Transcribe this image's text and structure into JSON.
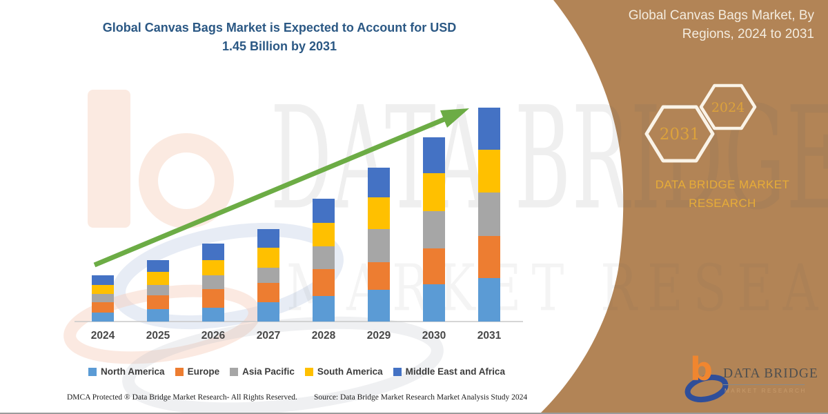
{
  "page": {
    "title_lines": [
      "Global Canvas Bags Market is Expected to Account for USD",
      "1.45 Billion by 2031"
    ],
    "footer_left": "DMCA Protected ® Data Bridge Market Research-  All Rights Reserved.",
    "footer_source": "Source: Data Bridge Market Research  Market Analysis Study 2024"
  },
  "sidebar": {
    "heading": "Global Canvas Bags Market, By Regions, 2024 to 2031",
    "hex_year_large": "2031",
    "hex_year_small": "2024",
    "brand_caption": "DATA BRIDGE MARKET RESEARCH",
    "bg_color": "#B28456",
    "hex_stroke_color": "#FAF3E7",
    "gold_color": "#E7AC38"
  },
  "logo": {
    "mark_letter": "b",
    "name": "DATA BRIDGE",
    "subtext": "MARKET RESEARCH"
  },
  "watermark": {
    "row1": "DATA BRIDGE",
    "row2": "MARKET RESEARCH"
  },
  "chart_data": {
    "type": "bar",
    "stacked": true,
    "title": "Global Canvas Bags Market is Expected to Account for USD 1.45 Billion by 2031",
    "unit": "USD Billion",
    "categories": [
      "2024",
      "2025",
      "2026",
      "2027",
      "2028",
      "2029",
      "2030",
      "2031"
    ],
    "series": [
      {
        "name": "North America",
        "color": "#5B9BD5",
        "values": [
          0.061,
          0.084,
          0.093,
          0.131,
          0.172,
          0.214,
          0.252,
          0.294
        ]
      },
      {
        "name": "Europe",
        "color": "#ED7D31",
        "values": [
          0.07,
          0.093,
          0.126,
          0.131,
          0.182,
          0.187,
          0.242,
          0.284
        ]
      },
      {
        "name": "Asia Pacific",
        "color": "#A6A6A6",
        "values": [
          0.056,
          0.07,
          0.093,
          0.103,
          0.154,
          0.224,
          0.256,
          0.298
        ]
      },
      {
        "name": "South America",
        "color": "#FFC000",
        "values": [
          0.061,
          0.089,
          0.103,
          0.135,
          0.159,
          0.219,
          0.256,
          0.289
        ]
      },
      {
        "name": "Middle East and Africa",
        "color": "#4472C4",
        "values": [
          0.065,
          0.079,
          0.112,
          0.126,
          0.168,
          0.2,
          0.242,
          0.284
        ]
      }
    ],
    "totals": [
      0.31,
      0.42,
      0.53,
      0.63,
      0.83,
      1.04,
      1.25,
      1.45
    ],
    "ylim": [
      0,
      1.5
    ],
    "grid": false,
    "legend_position": "bottom",
    "trend_arrow": true,
    "trend_color": "#6CAC45",
    "axis_line_color": "#C7C7C7"
  }
}
